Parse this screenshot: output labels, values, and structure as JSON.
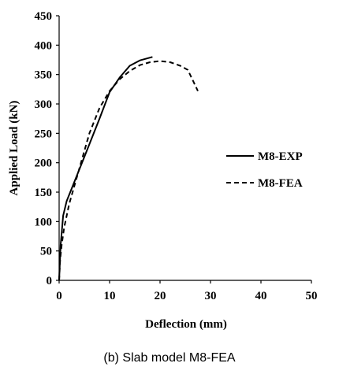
{
  "chart_data": {
    "type": "line",
    "caption": "(b) Slab model M8-FEA",
    "xlabel": "Deflection (mm)",
    "ylabel": "Applied Load (kN)",
    "xlim": [
      0,
      50
    ],
    "ylim": [
      0,
      450
    ],
    "xticks": [
      "0",
      "10",
      "20",
      "30",
      "40",
      "50"
    ],
    "yticks": [
      "0",
      "50",
      "100",
      "150",
      "200",
      "250",
      "300",
      "350",
      "400",
      "450"
    ],
    "grid": false,
    "legend_position": "right",
    "series": [
      {
        "name": "M8-EXP",
        "style": "solid",
        "color": "#000000",
        "points": [
          [
            0,
            0
          ],
          [
            0.3,
            60
          ],
          [
            0.8,
            110
          ],
          [
            1.5,
            135
          ],
          [
            5,
            210
          ],
          [
            8,
            275
          ],
          [
            10,
            320
          ],
          [
            12,
            345
          ],
          [
            14,
            365
          ],
          [
            16,
            374
          ],
          [
            18.5,
            380
          ]
        ]
      },
      {
        "name": "M8-FEA",
        "style": "dashed",
        "color": "#000000",
        "points": [
          [
            0,
            0
          ],
          [
            0.2,
            35
          ],
          [
            0.5,
            60
          ],
          [
            1,
            90
          ],
          [
            2,
            130
          ],
          [
            4,
            190
          ],
          [
            6,
            250
          ],
          [
            8,
            293
          ],
          [
            10,
            322
          ],
          [
            12,
            342
          ],
          [
            14,
            356
          ],
          [
            16,
            366
          ],
          [
            18,
            371
          ],
          [
            20,
            373
          ],
          [
            22,
            371
          ],
          [
            24,
            365
          ],
          [
            25.5,
            358
          ],
          [
            26.5,
            340
          ],
          [
            27.5,
            322
          ]
        ]
      }
    ]
  }
}
